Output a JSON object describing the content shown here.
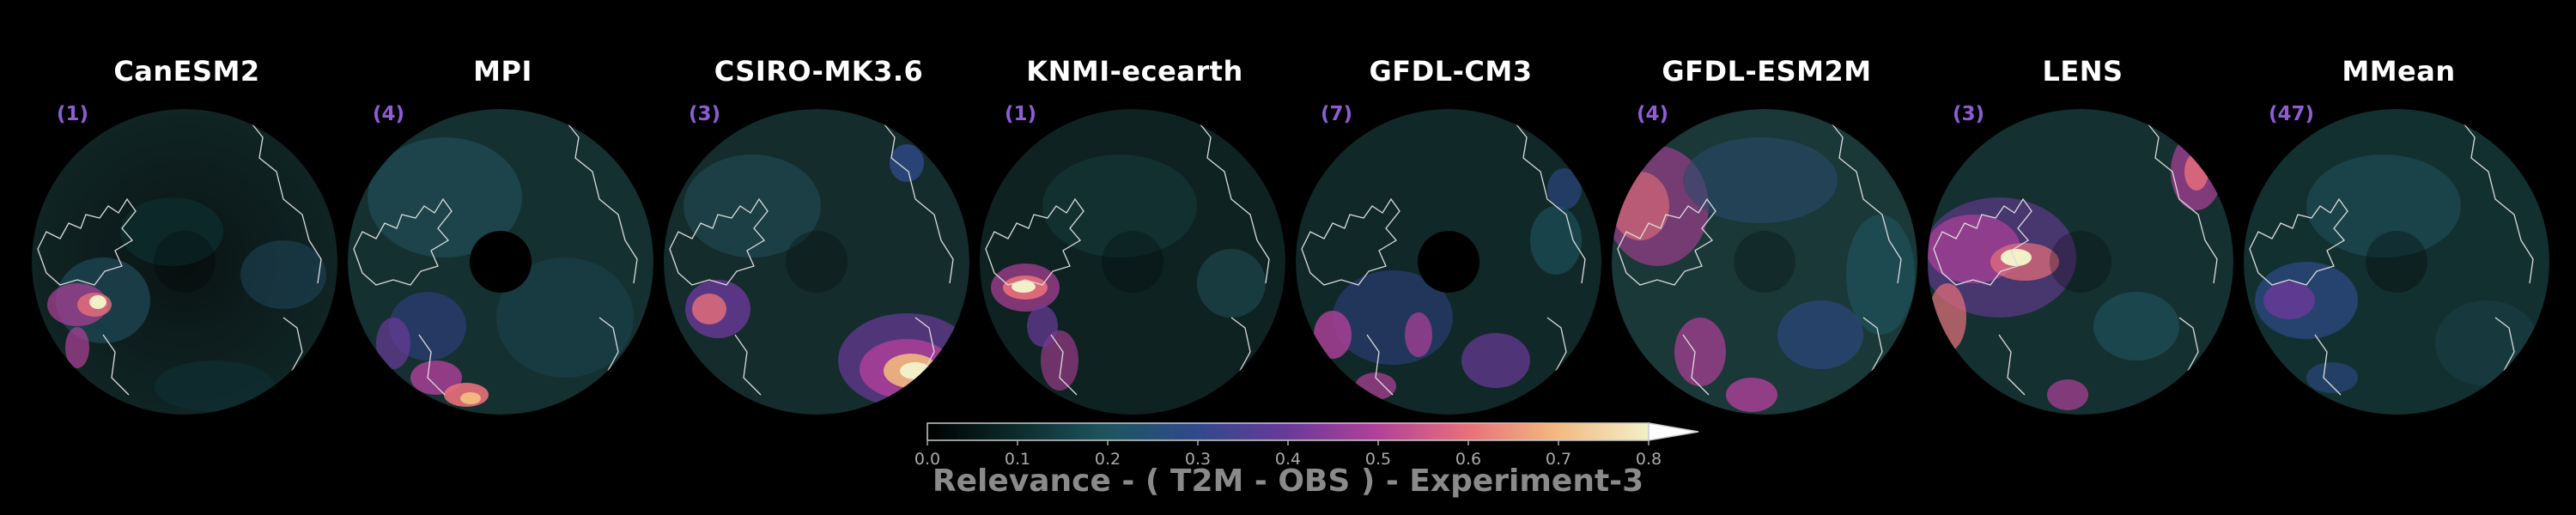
{
  "panels": [
    {
      "title": "CanESM2",
      "count": "(1)"
    },
    {
      "title": "MPI",
      "count": "(4)"
    },
    {
      "title": "CSIRO-MK3.6",
      "count": "(3)"
    },
    {
      "title": "KNMI-ecearth",
      "count": "(1)"
    },
    {
      "title": "GFDL-CM3",
      "count": "(7)"
    },
    {
      "title": "GFDL-ESM2M",
      "count": "(4)"
    },
    {
      "title": "LENS",
      "count": "(3)"
    },
    {
      "title": "MMean",
      "count": "(47)"
    }
  ],
  "colorbar": {
    "ticks": [
      "0.0",
      "0.1",
      "0.2",
      "0.3",
      "0.4",
      "0.5",
      "0.6",
      "0.7",
      "0.8"
    ],
    "min": 0.0,
    "max": 0.8,
    "extend": "max",
    "colors": [
      "#000000",
      "#0d2a2a",
      "#1f5560",
      "#2f4a8a",
      "#6a3a9a",
      "#b0409a",
      "#e8707a",
      "#f2b880",
      "#f2f0c8",
      "#ffffff"
    ]
  },
  "caption": "Relevance - ( T2M - OBS ) - Experiment-3",
  "colors": {
    "background": "#000000",
    "title": "#ffffff",
    "count": "#8f5cd6",
    "caption": "#8a8a8a",
    "coastline": "#dddddd"
  }
}
